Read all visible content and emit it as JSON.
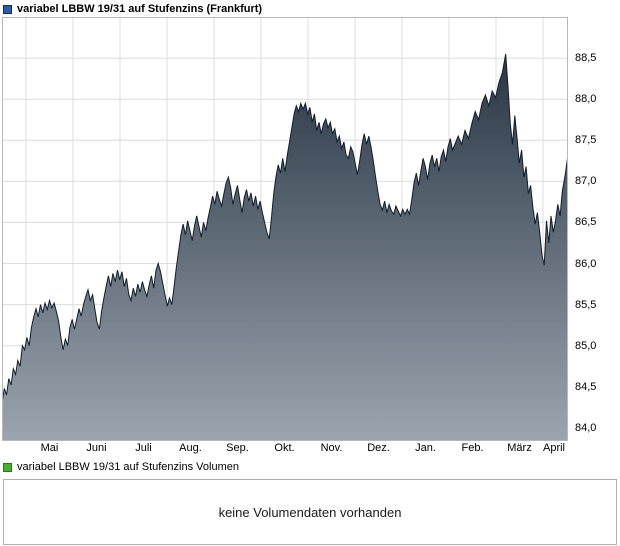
{
  "header": {
    "title": "variabel LBBW 19/31 auf Stufenzins (Frankfurt)",
    "legend_marker_color": "#2a5caa",
    "legend_marker_border": "#0d2d66"
  },
  "chart_data": {
    "type": "area",
    "title": "variabel LBBW 19/31 auf Stufenzins (Frankfurt)",
    "x_labels": [
      "Mai",
      "Juni",
      "Juli",
      "Aug.",
      "Sep.",
      "Okt.",
      "Nov.",
      "Dez.",
      "Jan.",
      "Feb.",
      "März",
      "April"
    ],
    "y_ticks": [
      {
        "value": 88.5,
        "label": "88,5"
      },
      {
        "value": 88.0,
        "label": "88,0"
      },
      {
        "value": 87.5,
        "label": "87,5"
      },
      {
        "value": 87.0,
        "label": "87,0"
      },
      {
        "value": 86.5,
        "label": "86,5"
      },
      {
        "value": 86.0,
        "label": "86,0"
      },
      {
        "value": 85.5,
        "label": "85,5"
      },
      {
        "value": 85.0,
        "label": "85,0"
      },
      {
        "value": 84.5,
        "label": "84,5"
      },
      {
        "value": 84.0,
        "label": "84,0"
      }
    ],
    "ylim": [
      83.84,
      89.0
    ],
    "grid": true,
    "legend_position": "top-left",
    "colors": {
      "line": "#121e2b",
      "fill_top": "#2a3644",
      "fill_bottom": "#9aa5af",
      "grid": "#dcdcdc",
      "border": "#b8b8b8"
    },
    "points": [
      [
        0,
        84.3
      ],
      [
        0.4,
        84.48
      ],
      [
        0.8,
        84.4
      ],
      [
        1.2,
        84.6
      ],
      [
        1.6,
        84.52
      ],
      [
        2,
        84.72
      ],
      [
        2.4,
        84.65
      ],
      [
        2.8,
        84.82
      ],
      [
        3.2,
        84.75
      ],
      [
        3.6,
        85.0
      ],
      [
        4,
        84.95
      ],
      [
        4.4,
        85.1
      ],
      [
        4.8,
        85.0
      ],
      [
        5.2,
        85.22
      ],
      [
        5.6,
        85.35
      ],
      [
        6,
        85.45
      ],
      [
        6.4,
        85.35
      ],
      [
        6.8,
        85.5
      ],
      [
        7.2,
        85.4
      ],
      [
        7.6,
        85.52
      ],
      [
        8,
        85.44
      ],
      [
        8.4,
        85.55
      ],
      [
        8.8,
        85.46
      ],
      [
        9.2,
        85.52
      ],
      [
        9.6,
        85.42
      ],
      [
        10,
        85.3
      ],
      [
        10.4,
        85.1
      ],
      [
        10.8,
        84.95
      ],
      [
        11.2,
        85.08
      ],
      [
        11.6,
        85.0
      ],
      [
        12,
        85.22
      ],
      [
        12.4,
        85.32
      ],
      [
        12.8,
        85.2
      ],
      [
        13.2,
        85.32
      ],
      [
        13.6,
        85.45
      ],
      [
        14,
        85.36
      ],
      [
        14.4,
        85.5
      ],
      [
        14.8,
        85.6
      ],
      [
        15.2,
        85.68
      ],
      [
        15.6,
        85.55
      ],
      [
        16,
        85.62
      ],
      [
        16.4,
        85.45
      ],
      [
        16.8,
        85.28
      ],
      [
        17.2,
        85.2
      ],
      [
        17.6,
        85.42
      ],
      [
        18,
        85.58
      ],
      [
        18.4,
        85.72
      ],
      [
        18.8,
        85.85
      ],
      [
        19.2,
        85.72
      ],
      [
        19.6,
        85.88
      ],
      [
        20,
        85.78
      ],
      [
        20.4,
        85.92
      ],
      [
        20.8,
        85.8
      ],
      [
        21.2,
        85.9
      ],
      [
        21.6,
        85.72
      ],
      [
        22,
        85.82
      ],
      [
        22.4,
        85.62
      ],
      [
        22.8,
        85.55
      ],
      [
        23.2,
        85.7
      ],
      [
        23.6,
        85.6
      ],
      [
        24,
        85.75
      ],
      [
        24.4,
        85.65
      ],
      [
        24.8,
        85.78
      ],
      [
        25.2,
        85.68
      ],
      [
        25.6,
        85.6
      ],
      [
        26,
        85.74
      ],
      [
        26.4,
        85.85
      ],
      [
        26.8,
        85.7
      ],
      [
        27.2,
        85.92
      ],
      [
        27.6,
        86.0
      ],
      [
        28,
        85.9
      ],
      [
        28.4,
        85.76
      ],
      [
        28.8,
        85.62
      ],
      [
        29.2,
        85.48
      ],
      [
        29.6,
        85.58
      ],
      [
        30,
        85.5
      ],
      [
        30.4,
        85.72
      ],
      [
        30.8,
        85.95
      ],
      [
        31.2,
        86.15
      ],
      [
        31.6,
        86.35
      ],
      [
        32,
        86.48
      ],
      [
        32.4,
        86.35
      ],
      [
        32.8,
        86.52
      ],
      [
        33.2,
        86.4
      ],
      [
        33.6,
        86.28
      ],
      [
        34,
        86.45
      ],
      [
        34.4,
        86.58
      ],
      [
        34.8,
        86.45
      ],
      [
        35.2,
        86.32
      ],
      [
        35.6,
        86.5
      ],
      [
        36,
        86.4
      ],
      [
        36.4,
        86.55
      ],
      [
        36.8,
        86.68
      ],
      [
        37.2,
        86.82
      ],
      [
        37.6,
        86.72
      ],
      [
        38,
        86.88
      ],
      [
        38.4,
        86.78
      ],
      [
        38.8,
        86.7
      ],
      [
        39.2,
        86.85
      ],
      [
        39.6,
        86.98
      ],
      [
        40,
        87.05
      ],
      [
        40.4,
        86.92
      ],
      [
        40.8,
        86.72
      ],
      [
        41.2,
        86.85
      ],
      [
        41.6,
        86.95
      ],
      [
        42,
        86.78
      ],
      [
        42.4,
        86.62
      ],
      [
        42.8,
        86.8
      ],
      [
        43.2,
        86.9
      ],
      [
        43.6,
        86.76
      ],
      [
        44,
        86.86
      ],
      [
        44.4,
        86.7
      ],
      [
        44.8,
        86.82
      ],
      [
        45.2,
        86.66
      ],
      [
        45.6,
        86.76
      ],
      [
        46,
        86.62
      ],
      [
        46.4,
        86.5
      ],
      [
        46.8,
        86.38
      ],
      [
        47.2,
        86.3
      ],
      [
        47.6,
        86.55
      ],
      [
        48,
        86.85
      ],
      [
        48.4,
        87.05
      ],
      [
        48.8,
        87.2
      ],
      [
        49.2,
        87.1
      ],
      [
        49.6,
        87.28
      ],
      [
        50,
        87.12
      ],
      [
        50.4,
        87.32
      ],
      [
        50.8,
        87.48
      ],
      [
        51.2,
        87.65
      ],
      [
        51.6,
        87.82
      ],
      [
        52,
        87.92
      ],
      [
        52.4,
        87.85
      ],
      [
        52.8,
        87.95
      ],
      [
        53.2,
        87.88
      ],
      [
        53.6,
        87.95
      ],
      [
        54,
        87.82
      ],
      [
        54.4,
        87.9
      ],
      [
        54.8,
        87.72
      ],
      [
        55.2,
        87.82
      ],
      [
        55.6,
        87.62
      ],
      [
        56,
        87.72
      ],
      [
        56.4,
        87.58
      ],
      [
        56.8,
        87.7
      ],
      [
        57.2,
        87.76
      ],
      [
        57.6,
        87.65
      ],
      [
        58,
        87.72
      ],
      [
        58.4,
        87.58
      ],
      [
        58.8,
        87.64
      ],
      [
        59.2,
        87.48
      ],
      [
        59.6,
        87.55
      ],
      [
        60,
        87.4
      ],
      [
        60.4,
        87.48
      ],
      [
        60.8,
        87.32
      ],
      [
        61.2,
        87.28
      ],
      [
        61.6,
        87.42
      ],
      [
        62,
        87.36
      ],
      [
        62.4,
        87.22
      ],
      [
        62.8,
        87.08
      ],
      [
        63.2,
        87.25
      ],
      [
        63.6,
        87.45
      ],
      [
        64,
        87.58
      ],
      [
        64.4,
        87.45
      ],
      [
        64.8,
        87.55
      ],
      [
        65.2,
        87.42
      ],
      [
        65.6,
        87.25
      ],
      [
        66,
        87.05
      ],
      [
        66.4,
        86.88
      ],
      [
        66.8,
        86.72
      ],
      [
        67.2,
        86.65
      ],
      [
        67.6,
        86.76
      ],
      [
        68,
        86.62
      ],
      [
        68.4,
        86.72
      ],
      [
        68.8,
        86.64
      ],
      [
        69.2,
        86.6
      ],
      [
        69.6,
        86.7
      ],
      [
        70,
        86.64
      ],
      [
        70.4,
        86.58
      ],
      [
        70.8,
        86.66
      ],
      [
        71.2,
        86.6
      ],
      [
        71.6,
        86.66
      ],
      [
        72,
        86.6
      ],
      [
        72.4,
        86.78
      ],
      [
        72.8,
        86.98
      ],
      [
        73.2,
        87.1
      ],
      [
        73.6,
        86.95
      ],
      [
        74,
        87.12
      ],
      [
        74.4,
        87.28
      ],
      [
        74.8,
        87.18
      ],
      [
        75.2,
        87.02
      ],
      [
        75.6,
        87.22
      ],
      [
        76,
        87.32
      ],
      [
        76.4,
        87.18
      ],
      [
        76.8,
        87.28
      ],
      [
        77.2,
        87.12
      ],
      [
        77.6,
        87.3
      ],
      [
        78,
        87.38
      ],
      [
        78.4,
        87.24
      ],
      [
        78.8,
        87.42
      ],
      [
        79.2,
        87.52
      ],
      [
        79.6,
        87.38
      ],
      [
        80,
        87.45
      ],
      [
        80.6,
        87.55
      ],
      [
        81.2,
        87.45
      ],
      [
        81.8,
        87.62
      ],
      [
        82.4,
        87.52
      ],
      [
        83,
        87.7
      ],
      [
        83.6,
        87.85
      ],
      [
        84.2,
        87.75
      ],
      [
        84.8,
        87.95
      ],
      [
        85.4,
        88.05
      ],
      [
        86,
        87.92
      ],
      [
        86.6,
        88.1
      ],
      [
        87.2,
        88.02
      ],
      [
        87.8,
        88.2
      ],
      [
        88.4,
        88.32
      ],
      [
        89,
        88.55
      ],
      [
        89.4,
        88.15
      ],
      [
        89.8,
        87.7
      ],
      [
        90.2,
        87.45
      ],
      [
        90.6,
        87.8
      ],
      [
        91,
        87.52
      ],
      [
        91.4,
        87.22
      ],
      [
        91.8,
        87.38
      ],
      [
        92.2,
        87.05
      ],
      [
        92.6,
        87.18
      ],
      [
        93,
        86.85
      ],
      [
        93.4,
        86.95
      ],
      [
        93.8,
        86.68
      ],
      [
        94.2,
        86.48
      ],
      [
        94.6,
        86.62
      ],
      [
        95,
        86.38
      ],
      [
        95.4,
        86.1
      ],
      [
        95.8,
        85.98
      ],
      [
        96.2,
        86.52
      ],
      [
        96.6,
        86.25
      ],
      [
        97,
        86.58
      ],
      [
        97.4,
        86.38
      ],
      [
        97.8,
        86.52
      ],
      [
        98.2,
        86.72
      ],
      [
        98.6,
        86.58
      ],
      [
        99,
        86.88
      ],
      [
        99.5,
        87.08
      ],
      [
        100,
        87.32
      ]
    ]
  },
  "volume": {
    "legend_label": "variabel LBBW 19/31 auf Stufenzins Volumen",
    "legend_marker_color": "#44b12b",
    "legend_marker_border": "#1f7a1f",
    "message": "keine Volumendaten vorhanden"
  }
}
